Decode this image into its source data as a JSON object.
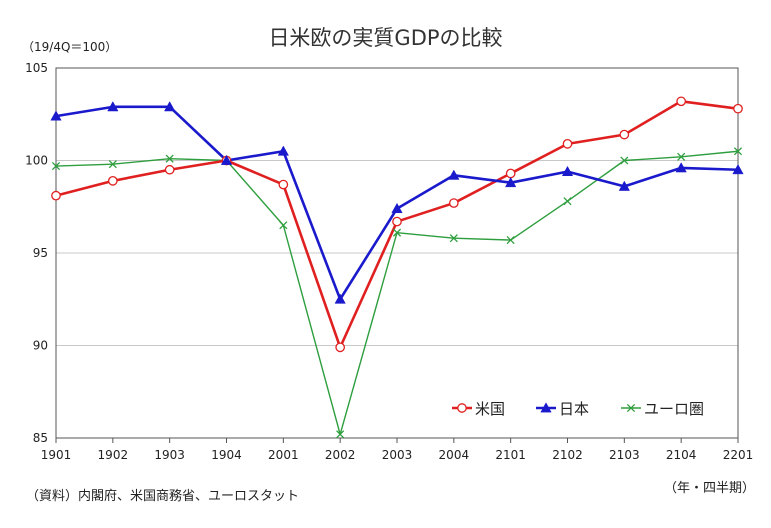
{
  "chart_data": {
    "type": "line",
    "title": "日米欧の実質GDPの比較",
    "unit_label": "（19/4Q＝100）",
    "source_note": "（資料）内閣府、米国商務省、ユーロスタット",
    "period_note": "（年・四半期）",
    "categories": [
      "1901",
      "1902",
      "1903",
      "1904",
      "2001",
      "2002",
      "2003",
      "2004",
      "2101",
      "2102",
      "2103",
      "2104",
      "2201"
    ],
    "ylim": [
      85,
      105
    ],
    "yticks": [
      85,
      90,
      95,
      100,
      105
    ],
    "grid": true,
    "legend_position": "bottom-right",
    "series": [
      {
        "name": "米国",
        "color": "#e02020",
        "marker": "circle",
        "values": [
          98.1,
          98.9,
          99.5,
          100.0,
          98.7,
          89.9,
          96.7,
          97.7,
          99.3,
          100.9,
          101.4,
          103.2,
          102.8
        ]
      },
      {
        "name": "日本",
        "color": "#1a1acc",
        "marker": "triangle",
        "values": [
          102.4,
          102.9,
          102.9,
          100.0,
          100.5,
          92.5,
          97.4,
          99.2,
          98.8,
          99.4,
          98.6,
          99.6,
          99.5
        ]
      },
      {
        "name": "ユーロ圏",
        "color": "#2e9e3e",
        "marker": "x",
        "values": [
          99.7,
          99.8,
          100.1,
          100.0,
          96.5,
          85.2,
          96.1,
          95.8,
          95.7,
          97.8,
          100.0,
          100.2,
          100.5
        ]
      }
    ]
  }
}
